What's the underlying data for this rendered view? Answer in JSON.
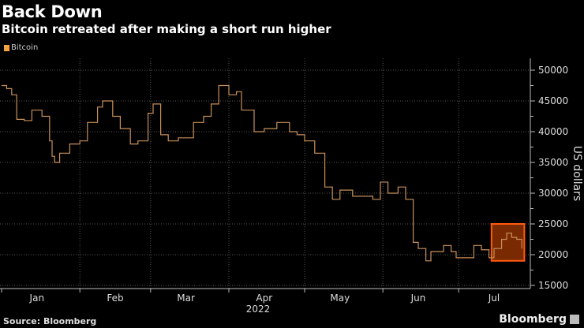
{
  "title": "Back Down",
  "subtitle": "Bitcoin retreated after making a short run higher",
  "source": "Source: Bloomberg",
  "brand": "Bloomberg",
  "colors": {
    "series": "#c8905a",
    "highlight_fill": "#7a2a00",
    "highlight_stroke": "#ff5a10",
    "legend": "#f5a142"
  },
  "chart_data": {
    "type": "line",
    "title": "Back Down",
    "subtitle": "Bitcoin retreated after making a short run higher",
    "xlabel": "2022",
    "ylabel": "US dollars",
    "ylim": [
      15000,
      51000
    ],
    "yticks": [
      15000,
      20000,
      25000,
      30000,
      35000,
      40000,
      45000,
      50000
    ],
    "xticks": [
      "Jan",
      "Feb",
      "Mar",
      "Apr",
      "May",
      "Jun",
      "Jul"
    ],
    "grid": true,
    "legend_placement": "top-left",
    "highlight": {
      "x": [
        "2022-07-14",
        "2022-07-27"
      ],
      "y": [
        19000,
        25000
      ]
    },
    "series": [
      {
        "name": "Bitcoin",
        "x": [
          "2022-01-01",
          "2022-01-03",
          "2022-01-05",
          "2022-01-07",
          "2022-01-10",
          "2022-01-13",
          "2022-01-17",
          "2022-01-20",
          "2022-01-21",
          "2022-01-22",
          "2022-01-24",
          "2022-01-28",
          "2022-02-01",
          "2022-02-04",
          "2022-02-08",
          "2022-02-10",
          "2022-02-14",
          "2022-02-17",
          "2022-02-21",
          "2022-02-24",
          "2022-02-28",
          "2022-03-02",
          "2022-03-05",
          "2022-03-08",
          "2022-03-12",
          "2022-03-15",
          "2022-03-18",
          "2022-03-22",
          "2022-03-25",
          "2022-03-28",
          "2022-04-01",
          "2022-04-04",
          "2022-04-06",
          "2022-04-11",
          "2022-04-15",
          "2022-04-20",
          "2022-04-25",
          "2022-04-28",
          "2022-05-01",
          "2022-05-05",
          "2022-05-09",
          "2022-05-12",
          "2022-05-15",
          "2022-05-20",
          "2022-05-25",
          "2022-05-28",
          "2022-05-31",
          "2022-06-03",
          "2022-06-07",
          "2022-06-10",
          "2022-06-13",
          "2022-06-15",
          "2022-06-18",
          "2022-06-20",
          "2022-06-25",
          "2022-06-28",
          "2022-06-30",
          "2022-07-03",
          "2022-07-07",
          "2022-07-10",
          "2022-07-13",
          "2022-07-15",
          "2022-07-18",
          "2022-07-20",
          "2022-07-22",
          "2022-07-24",
          "2022-07-26"
        ],
        "values": [
          47500,
          47000,
          46000,
          42000,
          41800,
          43500,
          42500,
          38500,
          36000,
          35000,
          36500,
          38000,
          38500,
          41500,
          44000,
          45000,
          42500,
          40500,
          38000,
          38500,
          43000,
          44500,
          39500,
          38500,
          39000,
          39000,
          41500,
          42500,
          44500,
          47500,
          46000,
          46500,
          43500,
          40000,
          40500,
          41500,
          40000,
          39500,
          38500,
          36500,
          31000,
          29000,
          30500,
          29500,
          29500,
          29000,
          31800,
          30000,
          31000,
          29000,
          22000,
          21000,
          19000,
          20500,
          21500,
          20500,
          19500,
          19500,
          21500,
          20800,
          19500,
          21000,
          22500,
          23500,
          22800,
          22500,
          21000
        ]
      }
    ]
  }
}
